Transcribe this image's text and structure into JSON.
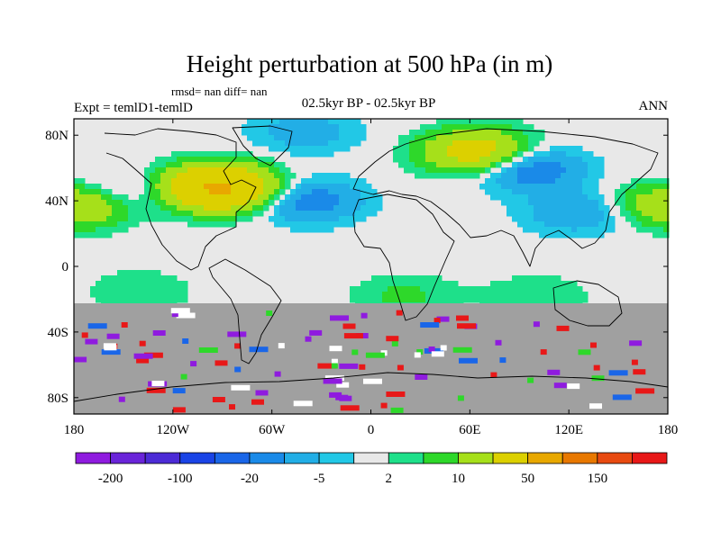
{
  "chart_data": {
    "type": "heatmap",
    "title": "Height perturbation at 500 hPa (in m)",
    "stats_label": "rmsd= nan diff= nan",
    "experiment_label": "Expt = temlD1-temlD",
    "period_label": "02.5kyr BP - 02.5kyr BP",
    "season_label": "ANN",
    "x_ticks": [
      "180",
      "120W",
      "60W",
      "0",
      "60E",
      "120E",
      "180"
    ],
    "y_ticks": [
      "80N",
      "40N",
      "0",
      "40S",
      "80S"
    ],
    "x_range": [
      -180,
      180
    ],
    "y_range": [
      -90,
      90
    ],
    "missing_below_lat": -23,
    "colorbar": {
      "levels": [
        -200,
        -150,
        -100,
        -50,
        -20,
        -10,
        -5,
        -2,
        2,
        5,
        10,
        20,
        50,
        100,
        150,
        200
      ],
      "labels": [
        "-200",
        "-100",
        "-20",
        "-5",
        "2",
        "10",
        "50",
        "150"
      ],
      "colors": [
        "#8f1bdf",
        "#6a24d9",
        "#4c2bd6",
        "#1a44e6",
        "#1a66e8",
        "#1a8ae8",
        "#22aee6",
        "#22c8e6",
        "#e8e8e8",
        "#1ee08a",
        "#2ed82a",
        "#a6e01a",
        "#dcd000",
        "#e8a800",
        "#e87800",
        "#e84a10",
        "#e81818"
      ]
    },
    "features": [
      {
        "name": "N Atlantic / N America positive",
        "lon": -92,
        "lat": 48,
        "value": 55
      },
      {
        "name": "Kara Sea positive",
        "lon": 65,
        "lat": 70,
        "value": 30
      },
      {
        "name": "Central Pacific positive",
        "lon": -175,
        "lat": 38,
        "value": 25
      },
      {
        "name": "Western Europe negative",
        "lon": -38,
        "lat": 40,
        "value": -15
      },
      {
        "name": "Siberia negative",
        "lon": 95,
        "lat": 60,
        "value": -18
      },
      {
        "name": "NE Pacific negative",
        "lon": -155,
        "lat": 44,
        "value": -12
      },
      {
        "name": "West Pacific negative",
        "lon": 125,
        "lat": 33,
        "value": -10
      },
      {
        "name": "Arctic negative",
        "lon": -40,
        "lat": 82,
        "value": -8
      },
      {
        "name": "Subtropical Pacific positive",
        "lon": -140,
        "lat": -15,
        "value": 5
      },
      {
        "name": "Subtropical Atlantic positive",
        "lon": 20,
        "lat": -18,
        "value": 6
      },
      {
        "name": "Subtropical Indian Ocean positive",
        "lon": 100,
        "lat": -18,
        "value": 5
      }
    ]
  }
}
